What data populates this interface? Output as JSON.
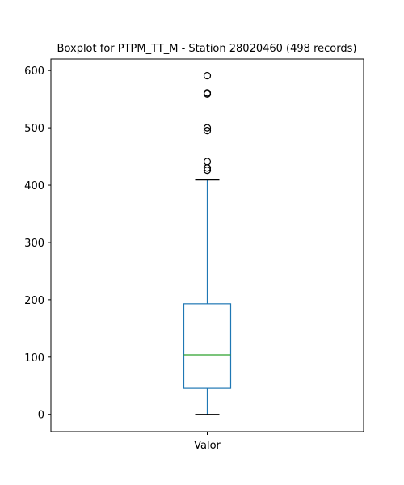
{
  "chart_data": {
    "type": "boxplot",
    "title": "Boxplot for PTPM_TT_M - Station 28020460 (498 records)",
    "xlabel": "",
    "ylabel": "",
    "categories": [
      "Valor"
    ],
    "ylim": [
      -30,
      620
    ],
    "yticks": [
      0,
      100,
      200,
      300,
      400,
      500,
      600
    ],
    "grid": false,
    "boxes": [
      {
        "name": "Valor",
        "whisker_low": 0,
        "q1": 46,
        "median": 104,
        "q3": 193,
        "whisker_high": 409,
        "outliers": [
          426,
          430,
          441,
          495,
          500,
          559,
          561,
          591
        ]
      }
    ],
    "colors": {
      "box": "#1f77b4",
      "median": "#2ca02c",
      "whisker_cap": "#000000",
      "outlier_edge": "#000000"
    }
  }
}
